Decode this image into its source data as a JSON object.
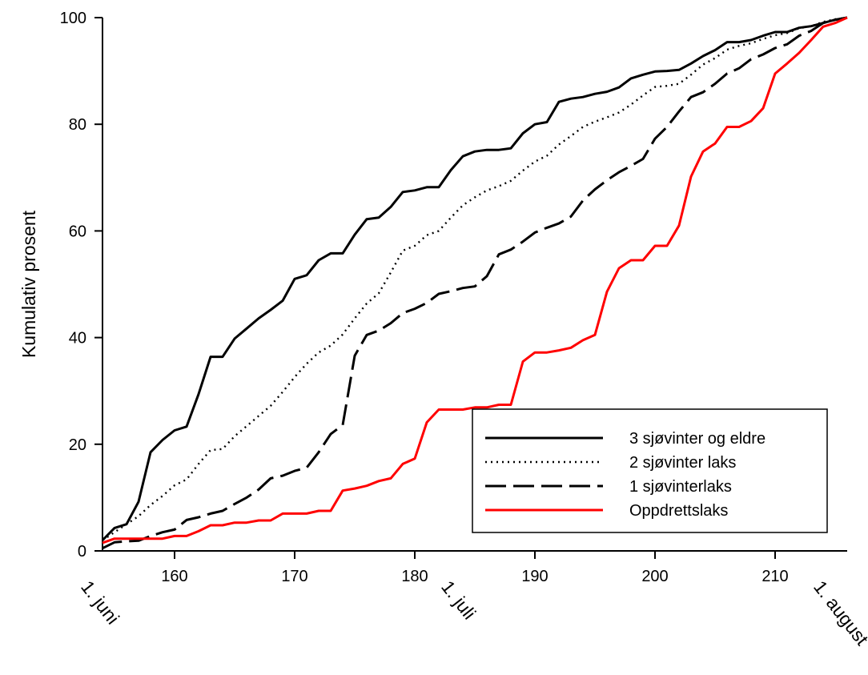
{
  "chart_data": {
    "type": "line",
    "xlabel": "",
    "ylabel": "Kumulativ prosent",
    "xlim": [
      154,
      216
    ],
    "ylim": [
      0,
      100
    ],
    "x_ticks": [
      160,
      170,
      180,
      190,
      200,
      210
    ],
    "y_ticks": [
      0,
      20,
      40,
      60,
      80,
      100
    ],
    "date_markers": [
      {
        "label": "1. juni",
        "x": 152
      },
      {
        "label": "1. juli",
        "x": 182
      },
      {
        "label": "1. august",
        "x": 213
      }
    ],
    "grid": false,
    "legend_position": "bottom-right",
    "series": [
      {
        "name": "3 sjøvinter og eldre",
        "color": "#000000",
        "dash": "solid",
        "points": [
          [
            154,
            2
          ],
          [
            155,
            4.3
          ],
          [
            156,
            5
          ],
          [
            157,
            9.2
          ],
          [
            158,
            18.5
          ],
          [
            159,
            20.8
          ],
          [
            160,
            22.6
          ],
          [
            161,
            23.3
          ],
          [
            162,
            29.4
          ],
          [
            163,
            36.4
          ],
          [
            164,
            36.4
          ],
          [
            165,
            39.8
          ],
          [
            166,
            41.7
          ],
          [
            167,
            43.6
          ],
          [
            168,
            45.2
          ],
          [
            169,
            46.9
          ],
          [
            170,
            51
          ],
          [
            171,
            51.7
          ],
          [
            172,
            54.5
          ],
          [
            173,
            55.8
          ],
          [
            174,
            55.8
          ],
          [
            175,
            59.3
          ],
          [
            176,
            62.2
          ],
          [
            177,
            62.5
          ],
          [
            178,
            64.5
          ],
          [
            179,
            67.3
          ],
          [
            180,
            67.6
          ],
          [
            181,
            68.2
          ],
          [
            182,
            68.2
          ],
          [
            183,
            71.4
          ],
          [
            184,
            74
          ],
          [
            185,
            74.9
          ],
          [
            186,
            75.2
          ],
          [
            187,
            75.2
          ],
          [
            188,
            75.5
          ],
          [
            189,
            78.3
          ],
          [
            190,
            80
          ],
          [
            191,
            80.4
          ],
          [
            192,
            84.2
          ],
          [
            193,
            84.8
          ],
          [
            194,
            85.1
          ],
          [
            195,
            85.7
          ],
          [
            196,
            86.1
          ],
          [
            197,
            86.9
          ],
          [
            198,
            88.6
          ],
          [
            199,
            89.3
          ],
          [
            200,
            89.9
          ],
          [
            201,
            90
          ],
          [
            202,
            90.2
          ],
          [
            203,
            91.4
          ],
          [
            204,
            92.8
          ],
          [
            205,
            93.9
          ],
          [
            206,
            95.4
          ],
          [
            207,
            95.4
          ],
          [
            208,
            95.8
          ],
          [
            209,
            96.6
          ],
          [
            210,
            97.3
          ],
          [
            211,
            97.3
          ],
          [
            212,
            98.1
          ],
          [
            213,
            98.4
          ],
          [
            214,
            99
          ],
          [
            215,
            99.6
          ],
          [
            216,
            100
          ]
        ]
      },
      {
        "name": "2 sjøvinter laks",
        "color": "#000000",
        "dash": "dotted",
        "points": [
          [
            154,
            2
          ],
          [
            155,
            3.5
          ],
          [
            156,
            5
          ],
          [
            157,
            6.5
          ],
          [
            158,
            8.6
          ],
          [
            159,
            10.3
          ],
          [
            160,
            12.3
          ],
          [
            161,
            13.4
          ],
          [
            162,
            16.3
          ],
          [
            163,
            18.9
          ],
          [
            164,
            19.1
          ],
          [
            165,
            21.5
          ],
          [
            166,
            23.4
          ],
          [
            167,
            25.3
          ],
          [
            168,
            27.2
          ],
          [
            169,
            29.8
          ],
          [
            170,
            32.6
          ],
          [
            171,
            35.1
          ],
          [
            172,
            37.2
          ],
          [
            173,
            38.5
          ],
          [
            174,
            40.6
          ],
          [
            175,
            43.6
          ],
          [
            176,
            46.4
          ],
          [
            177,
            48.3
          ],
          [
            178,
            52.2
          ],
          [
            179,
            56.3
          ],
          [
            180,
            57.2
          ],
          [
            181,
            59.2
          ],
          [
            182,
            60
          ],
          [
            183,
            62.5
          ],
          [
            184,
            64.8
          ],
          [
            185,
            66.3
          ],
          [
            186,
            67.6
          ],
          [
            187,
            68.4
          ],
          [
            188,
            69.4
          ],
          [
            189,
            71.3
          ],
          [
            190,
            73
          ],
          [
            191,
            74.1
          ],
          [
            192,
            76.2
          ],
          [
            193,
            77.8
          ],
          [
            194,
            79.5
          ],
          [
            195,
            80.5
          ],
          [
            196,
            81.3
          ],
          [
            197,
            82.2
          ],
          [
            198,
            83.7
          ],
          [
            199,
            85.4
          ],
          [
            200,
            87
          ],
          [
            201,
            87.2
          ],
          [
            202,
            87.6
          ],
          [
            203,
            89.3
          ],
          [
            204,
            91.2
          ],
          [
            205,
            92.4
          ],
          [
            206,
            94
          ],
          [
            207,
            94.7
          ],
          [
            208,
            95.2
          ],
          [
            209,
            96
          ],
          [
            210,
            96.7
          ],
          [
            211,
            97.1
          ],
          [
            212,
            98
          ],
          [
            213,
            98.4
          ],
          [
            214,
            99.2
          ],
          [
            215,
            99.7
          ],
          [
            216,
            100
          ]
        ]
      },
      {
        "name": "1 sjøvinterlaks",
        "color": "#000000",
        "dash": "long-dash",
        "points": [
          [
            154,
            0.5
          ],
          [
            155,
            1.6
          ],
          [
            156,
            1.8
          ],
          [
            157,
            1.9
          ],
          [
            158,
            2.8
          ],
          [
            159,
            3.5
          ],
          [
            160,
            4
          ],
          [
            161,
            5.8
          ],
          [
            162,
            6.3
          ],
          [
            163,
            7
          ],
          [
            164,
            7.5
          ],
          [
            165,
            8.8
          ],
          [
            166,
            10
          ],
          [
            167,
            11.5
          ],
          [
            168,
            13.6
          ],
          [
            169,
            14.1
          ],
          [
            170,
            15
          ],
          [
            171,
            15.6
          ],
          [
            172,
            18.5
          ],
          [
            173,
            21.9
          ],
          [
            174,
            23.6
          ],
          [
            175,
            36.6
          ],
          [
            176,
            40.5
          ],
          [
            177,
            41.3
          ],
          [
            178,
            42.7
          ],
          [
            179,
            44.6
          ],
          [
            180,
            45.4
          ],
          [
            181,
            46.5
          ],
          [
            182,
            48.2
          ],
          [
            183,
            48.7
          ],
          [
            184,
            49.3
          ],
          [
            185,
            49.6
          ],
          [
            186,
            51.5
          ],
          [
            187,
            55.6
          ],
          [
            188,
            56.5
          ],
          [
            189,
            58
          ],
          [
            190,
            59.7
          ],
          [
            191,
            60.6
          ],
          [
            192,
            61.4
          ],
          [
            193,
            62.7
          ],
          [
            194,
            65.7
          ],
          [
            195,
            67.8
          ],
          [
            196,
            69.5
          ],
          [
            197,
            71
          ],
          [
            198,
            72.2
          ],
          [
            199,
            73.5
          ],
          [
            200,
            77.3
          ],
          [
            201,
            79.5
          ],
          [
            202,
            82.4
          ],
          [
            203,
            85.1
          ],
          [
            204,
            86
          ],
          [
            205,
            87.6
          ],
          [
            206,
            89.5
          ],
          [
            207,
            90.5
          ],
          [
            208,
            92.2
          ],
          [
            209,
            93.1
          ],
          [
            210,
            94.3
          ],
          [
            211,
            95
          ],
          [
            212,
            96.6
          ],
          [
            213,
            97.5
          ],
          [
            214,
            99
          ],
          [
            215,
            99.6
          ],
          [
            216,
            100
          ]
        ]
      },
      {
        "name": "Oppdrettslaks",
        "color": "#ff0000",
        "dash": "solid",
        "points": [
          [
            154,
            1.5
          ],
          [
            155,
            2.3
          ],
          [
            156,
            2.3
          ],
          [
            157,
            2.3
          ],
          [
            158,
            2.3
          ],
          [
            159,
            2.3
          ],
          [
            160,
            2.8
          ],
          [
            161,
            2.8
          ],
          [
            162,
            3.7
          ],
          [
            163,
            4.8
          ],
          [
            164,
            4.8
          ],
          [
            165,
            5.3
          ],
          [
            166,
            5.3
          ],
          [
            167,
            5.7
          ],
          [
            168,
            5.7
          ],
          [
            169,
            7
          ],
          [
            170,
            7
          ],
          [
            171,
            7
          ],
          [
            172,
            7.5
          ],
          [
            173,
            7.5
          ],
          [
            174,
            11.3
          ],
          [
            175,
            11.7
          ],
          [
            176,
            12.2
          ],
          [
            177,
            13.1
          ],
          [
            178,
            13.6
          ],
          [
            179,
            16.3
          ],
          [
            180,
            17.3
          ],
          [
            181,
            24.1
          ],
          [
            182,
            26.5
          ],
          [
            183,
            26.5
          ],
          [
            184,
            26.5
          ],
          [
            185,
            26.9
          ],
          [
            186,
            26.9
          ],
          [
            187,
            27.4
          ],
          [
            188,
            27.4
          ],
          [
            189,
            35.5
          ],
          [
            190,
            37.2
          ],
          [
            191,
            37.2
          ],
          [
            192,
            37.6
          ],
          [
            193,
            38.1
          ],
          [
            194,
            39.5
          ],
          [
            195,
            40.5
          ],
          [
            196,
            48.6
          ],
          [
            197,
            53
          ],
          [
            198,
            54.5
          ],
          [
            199,
            54.5
          ],
          [
            200,
            57.2
          ],
          [
            201,
            57.2
          ],
          [
            202,
            61
          ],
          [
            203,
            70.2
          ],
          [
            204,
            74.9
          ],
          [
            205,
            76.4
          ],
          [
            206,
            79.5
          ],
          [
            207,
            79.5
          ],
          [
            208,
            80.6
          ],
          [
            209,
            83
          ],
          [
            210,
            89.5
          ],
          [
            211,
            91.4
          ],
          [
            212,
            93.4
          ],
          [
            213,
            95.8
          ],
          [
            214,
            98.3
          ],
          [
            215,
            99
          ],
          [
            216,
            100
          ]
        ]
      }
    ]
  }
}
